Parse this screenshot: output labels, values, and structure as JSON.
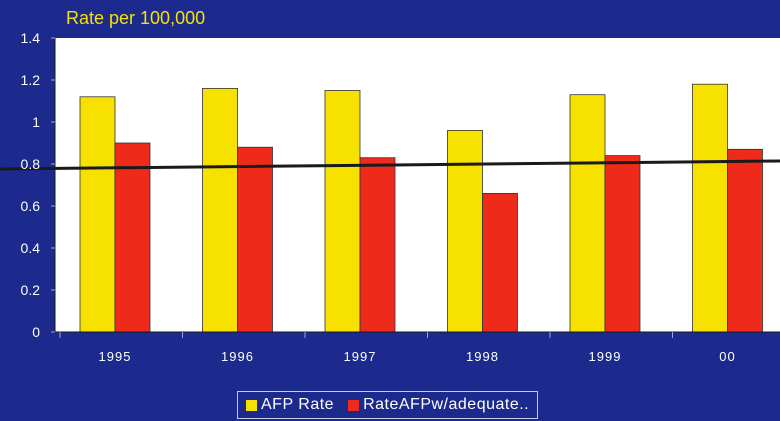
{
  "chart_data": {
    "type": "bar",
    "ylabel": "Rate per 100,000",
    "categories": [
      "1995",
      "1996",
      "1997",
      "1998",
      "1999",
      "00"
    ],
    "ylim": [
      0,
      1.4
    ],
    "yticks": [
      "0",
      "0.2",
      "0.4",
      "0.6",
      "0.8",
      "1",
      "1.2",
      "1.4"
    ],
    "series": [
      {
        "name": "AFP Rate",
        "color": "#f7e100",
        "values": [
          1.12,
          1.16,
          1.15,
          0.96,
          1.13,
          1.18
        ]
      },
      {
        "name": "RateAFPw/adequate..",
        "color": "#ee2a1b",
        "values": [
          0.9,
          0.88,
          0.83,
          0.66,
          0.84,
          0.87
        ]
      }
    ],
    "reference_line": {
      "value": 0.8,
      "color": "#1a1a1a"
    },
    "legend_position": "bottom-center",
    "grid": false
  },
  "colors": {
    "background": "#1b2a8c",
    "plot_area": "#ffffff",
    "text": "#ffffff"
  }
}
